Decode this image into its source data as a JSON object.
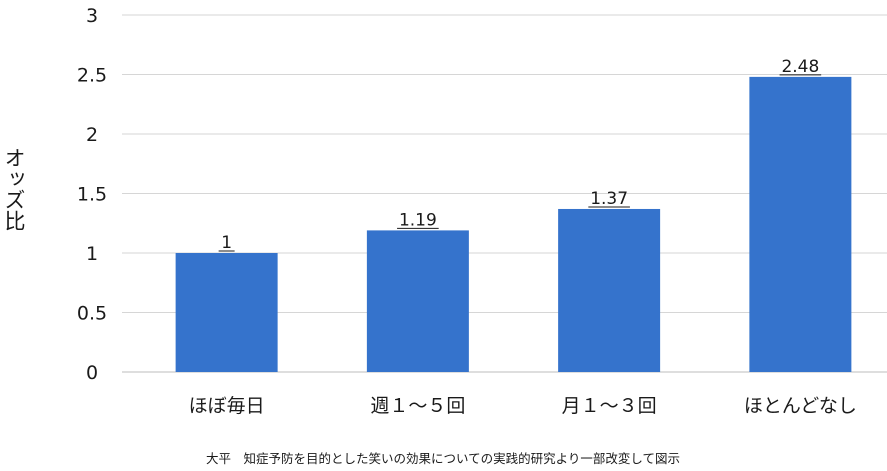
{
  "chart_data": {
    "type": "bar",
    "categories": [
      "ほぼ毎日",
      "週１～５回",
      "月１～３回",
      "ほとんどなし"
    ],
    "values": [
      1,
      1.19,
      1.37,
      2.48
    ],
    "data_labels": [
      "1",
      "1.19",
      "1.37",
      "2.48"
    ],
    "title": "",
    "xlabel": "",
    "ylabel": "オッズ比",
    "ylim": [
      0,
      3
    ],
    "yticks": [
      0,
      0.5,
      1,
      1.5,
      2,
      2.5,
      3
    ],
    "ytick_labels": [
      "0",
      "0.5",
      "1",
      "1.5",
      "2",
      "2.5",
      "3"
    ],
    "grid": true,
    "legend": "none",
    "bar_color": "#3573cc",
    "source_note": "大平　知症予防を目的とした笑いの効果についての実践的研究より一部改変して図示"
  }
}
